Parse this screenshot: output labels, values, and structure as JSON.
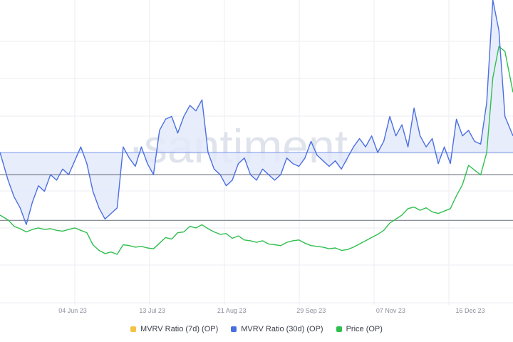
{
  "watermark": "·santiment·",
  "colors": {
    "mvrv7d": "#f5c342",
    "mvrv30d": "#4a6fe0",
    "price": "#2fbf4f",
    "fill": "#e4eafc",
    "grid": "#eceef3",
    "refline": "#7a7f8c",
    "tick": "#8a8f9c"
  },
  "chart_data": {
    "type": "line",
    "title": "",
    "xlabel": "",
    "ylabel": "",
    "x_ticks": [
      "04 Jun 23",
      "13 Jul 23",
      "21 Aug 23",
      "29 Sep 23",
      "07 Nov 23",
      "16 Dec 23"
    ],
    "x_range": [
      "2023-04-23",
      "2024-01-02"
    ],
    "legend_position": "bottom",
    "grid": true,
    "series": [
      {
        "name": "MVRV Ratio (7d) (OP)",
        "color": "#f5c342",
        "points": []
      },
      {
        "name": "MVRV Ratio (30d) (OP)",
        "color": "#4a6fe0",
        "y_scale": [
          0.45,
          1.55
        ],
        "baseline": 1.0,
        "points": [
          [
            "2023-04-23",
            1.0
          ],
          [
            "2023-04-27",
            0.9
          ],
          [
            "2023-04-30",
            0.84
          ],
          [
            "2023-05-03",
            0.8
          ],
          [
            "2023-05-06",
            0.74
          ],
          [
            "2023-05-09",
            0.82
          ],
          [
            "2023-05-12",
            0.88
          ],
          [
            "2023-05-15",
            0.86
          ],
          [
            "2023-05-18",
            0.92
          ],
          [
            "2023-05-21",
            0.9
          ],
          [
            "2023-05-24",
            0.94
          ],
          [
            "2023-05-27",
            0.92
          ],
          [
            "2023-05-30",
            0.97
          ],
          [
            "2023-06-02",
            1.02
          ],
          [
            "2023-06-05",
            0.96
          ],
          [
            "2023-06-08",
            0.86
          ],
          [
            "2023-06-11",
            0.8
          ],
          [
            "2023-06-14",
            0.76
          ],
          [
            "2023-06-17",
            0.78
          ],
          [
            "2023-06-20",
            0.8
          ],
          [
            "2023-06-23",
            1.02
          ],
          [
            "2023-06-26",
            0.98
          ],
          [
            "2023-06-29",
            0.95
          ],
          [
            "2023-07-02",
            1.02
          ],
          [
            "2023-07-05",
            0.96
          ],
          [
            "2023-07-08",
            0.92
          ],
          [
            "2023-07-11",
            1.08
          ],
          [
            "2023-07-14",
            1.12
          ],
          [
            "2023-07-17",
            1.13
          ],
          [
            "2023-07-20",
            1.07
          ],
          [
            "2023-07-23",
            1.13
          ],
          [
            "2023-07-26",
            1.17
          ],
          [
            "2023-07-29",
            1.15
          ],
          [
            "2023-08-01",
            1.19
          ],
          [
            "2023-08-04",
            1.0
          ],
          [
            "2023-08-07",
            0.94
          ],
          [
            "2023-08-10",
            0.92
          ],
          [
            "2023-08-13",
            0.88
          ],
          [
            "2023-08-16",
            0.9
          ],
          [
            "2023-08-19",
            0.96
          ],
          [
            "2023-08-22",
            0.98
          ],
          [
            "2023-08-25",
            0.92
          ],
          [
            "2023-08-28",
            0.9
          ],
          [
            "2023-08-31",
            0.94
          ],
          [
            "2023-09-03",
            0.92
          ],
          [
            "2023-09-06",
            0.9
          ],
          [
            "2023-09-09",
            0.92
          ],
          [
            "2023-09-12",
            0.98
          ],
          [
            "2023-09-15",
            0.96
          ],
          [
            "2023-09-18",
            0.95
          ],
          [
            "2023-09-21",
            0.98
          ],
          [
            "2023-09-24",
            1.04
          ],
          [
            "2023-09-27",
            0.99
          ],
          [
            "2023-09-30",
            0.97
          ],
          [
            "2023-10-03",
            0.95
          ],
          [
            "2023-10-06",
            0.97
          ],
          [
            "2023-10-09",
            0.94
          ],
          [
            "2023-10-12",
            0.98
          ],
          [
            "2023-10-15",
            1.02
          ],
          [
            "2023-10-18",
            1.05
          ],
          [
            "2023-10-21",
            1.02
          ],
          [
            "2023-10-24",
            1.06
          ],
          [
            "2023-10-27",
            1.0
          ],
          [
            "2023-10-30",
            1.04
          ],
          [
            "2023-11-02",
            1.13
          ],
          [
            "2023-11-05",
            1.06
          ],
          [
            "2023-11-08",
            1.1
          ],
          [
            "2023-11-11",
            1.02
          ],
          [
            "2023-11-14",
            1.16
          ],
          [
            "2023-11-17",
            1.06
          ],
          [
            "2023-11-20",
            1.02
          ],
          [
            "2023-11-23",
            1.05
          ],
          [
            "2023-11-26",
            0.96
          ],
          [
            "2023-11-29",
            1.02
          ],
          [
            "2023-12-02",
            0.96
          ],
          [
            "2023-12-05",
            1.12
          ],
          [
            "2023-12-08",
            1.06
          ],
          [
            "2023-12-11",
            1.08
          ],
          [
            "2023-12-14",
            1.04
          ],
          [
            "2023-12-17",
            1.03
          ],
          [
            "2023-12-20",
            1.18
          ],
          [
            "2023-12-23",
            1.55
          ],
          [
            "2023-12-26",
            1.44
          ],
          [
            "2023-12-29",
            1.13
          ],
          [
            "2024-01-02",
            1.06
          ]
        ]
      },
      {
        "name": "Price (OP)",
        "color": "#2fbf4f",
        "y_scale": [
          0.5,
          4.3
        ],
        "points": [
          [
            "2023-04-23",
            1.62
          ],
          [
            "2023-04-27",
            1.56
          ],
          [
            "2023-04-30",
            1.48
          ],
          [
            "2023-05-03",
            1.45
          ],
          [
            "2023-05-06",
            1.41
          ],
          [
            "2023-05-09",
            1.44
          ],
          [
            "2023-05-12",
            1.46
          ],
          [
            "2023-05-15",
            1.44
          ],
          [
            "2023-05-18",
            1.45
          ],
          [
            "2023-05-21",
            1.43
          ],
          [
            "2023-05-24",
            1.42
          ],
          [
            "2023-05-27",
            1.44
          ],
          [
            "2023-05-30",
            1.46
          ],
          [
            "2023-06-02",
            1.43
          ],
          [
            "2023-06-05",
            1.4
          ],
          [
            "2023-06-08",
            1.25
          ],
          [
            "2023-06-11",
            1.18
          ],
          [
            "2023-06-14",
            1.14
          ],
          [
            "2023-06-17",
            1.16
          ],
          [
            "2023-06-20",
            1.13
          ],
          [
            "2023-06-23",
            1.25
          ],
          [
            "2023-06-26",
            1.24
          ],
          [
            "2023-06-29",
            1.22
          ],
          [
            "2023-07-02",
            1.23
          ],
          [
            "2023-07-05",
            1.21
          ],
          [
            "2023-07-08",
            1.2
          ],
          [
            "2023-07-11",
            1.27
          ],
          [
            "2023-07-14",
            1.34
          ],
          [
            "2023-07-17",
            1.32
          ],
          [
            "2023-07-20",
            1.4
          ],
          [
            "2023-07-23",
            1.41
          ],
          [
            "2023-07-26",
            1.48
          ],
          [
            "2023-07-29",
            1.46
          ],
          [
            "2023-08-01",
            1.5
          ],
          [
            "2023-08-04",
            1.45
          ],
          [
            "2023-08-07",
            1.41
          ],
          [
            "2023-08-10",
            1.38
          ],
          [
            "2023-08-13",
            1.39
          ],
          [
            "2023-08-16",
            1.33
          ],
          [
            "2023-08-19",
            1.36
          ],
          [
            "2023-08-22",
            1.31
          ],
          [
            "2023-08-25",
            1.3
          ],
          [
            "2023-08-28",
            1.28
          ],
          [
            "2023-08-31",
            1.3
          ],
          [
            "2023-09-03",
            1.26
          ],
          [
            "2023-09-06",
            1.25
          ],
          [
            "2023-09-09",
            1.24
          ],
          [
            "2023-09-12",
            1.28
          ],
          [
            "2023-09-15",
            1.3
          ],
          [
            "2023-09-18",
            1.31
          ],
          [
            "2023-09-21",
            1.27
          ],
          [
            "2023-09-24",
            1.24
          ],
          [
            "2023-09-27",
            1.23
          ],
          [
            "2023-09-30",
            1.22
          ],
          [
            "2023-10-03",
            1.2
          ],
          [
            "2023-10-06",
            1.21
          ],
          [
            "2023-10-09",
            1.18
          ],
          [
            "2023-10-12",
            1.19
          ],
          [
            "2023-10-15",
            1.22
          ],
          [
            "2023-10-18",
            1.26
          ],
          [
            "2023-10-21",
            1.3
          ],
          [
            "2023-10-24",
            1.34
          ],
          [
            "2023-10-27",
            1.38
          ],
          [
            "2023-10-30",
            1.43
          ],
          [
            "2023-11-02",
            1.52
          ],
          [
            "2023-11-05",
            1.57
          ],
          [
            "2023-11-08",
            1.62
          ],
          [
            "2023-11-11",
            1.7
          ],
          [
            "2023-11-14",
            1.72
          ],
          [
            "2023-11-17",
            1.68
          ],
          [
            "2023-11-20",
            1.71
          ],
          [
            "2023-11-23",
            1.66
          ],
          [
            "2023-11-26",
            1.64
          ],
          [
            "2023-11-29",
            1.67
          ],
          [
            "2023-12-02",
            1.7
          ],
          [
            "2023-12-05",
            1.86
          ],
          [
            "2023-12-08",
            2.0
          ],
          [
            "2023-12-11",
            2.24
          ],
          [
            "2023-12-14",
            2.18
          ],
          [
            "2023-12-17",
            2.12
          ],
          [
            "2023-12-20",
            2.4
          ],
          [
            "2023-12-23",
            3.33
          ],
          [
            "2023-12-26",
            3.72
          ],
          [
            "2023-12-29",
            3.66
          ],
          [
            "2024-01-02",
            3.15
          ]
        ]
      }
    ]
  }
}
